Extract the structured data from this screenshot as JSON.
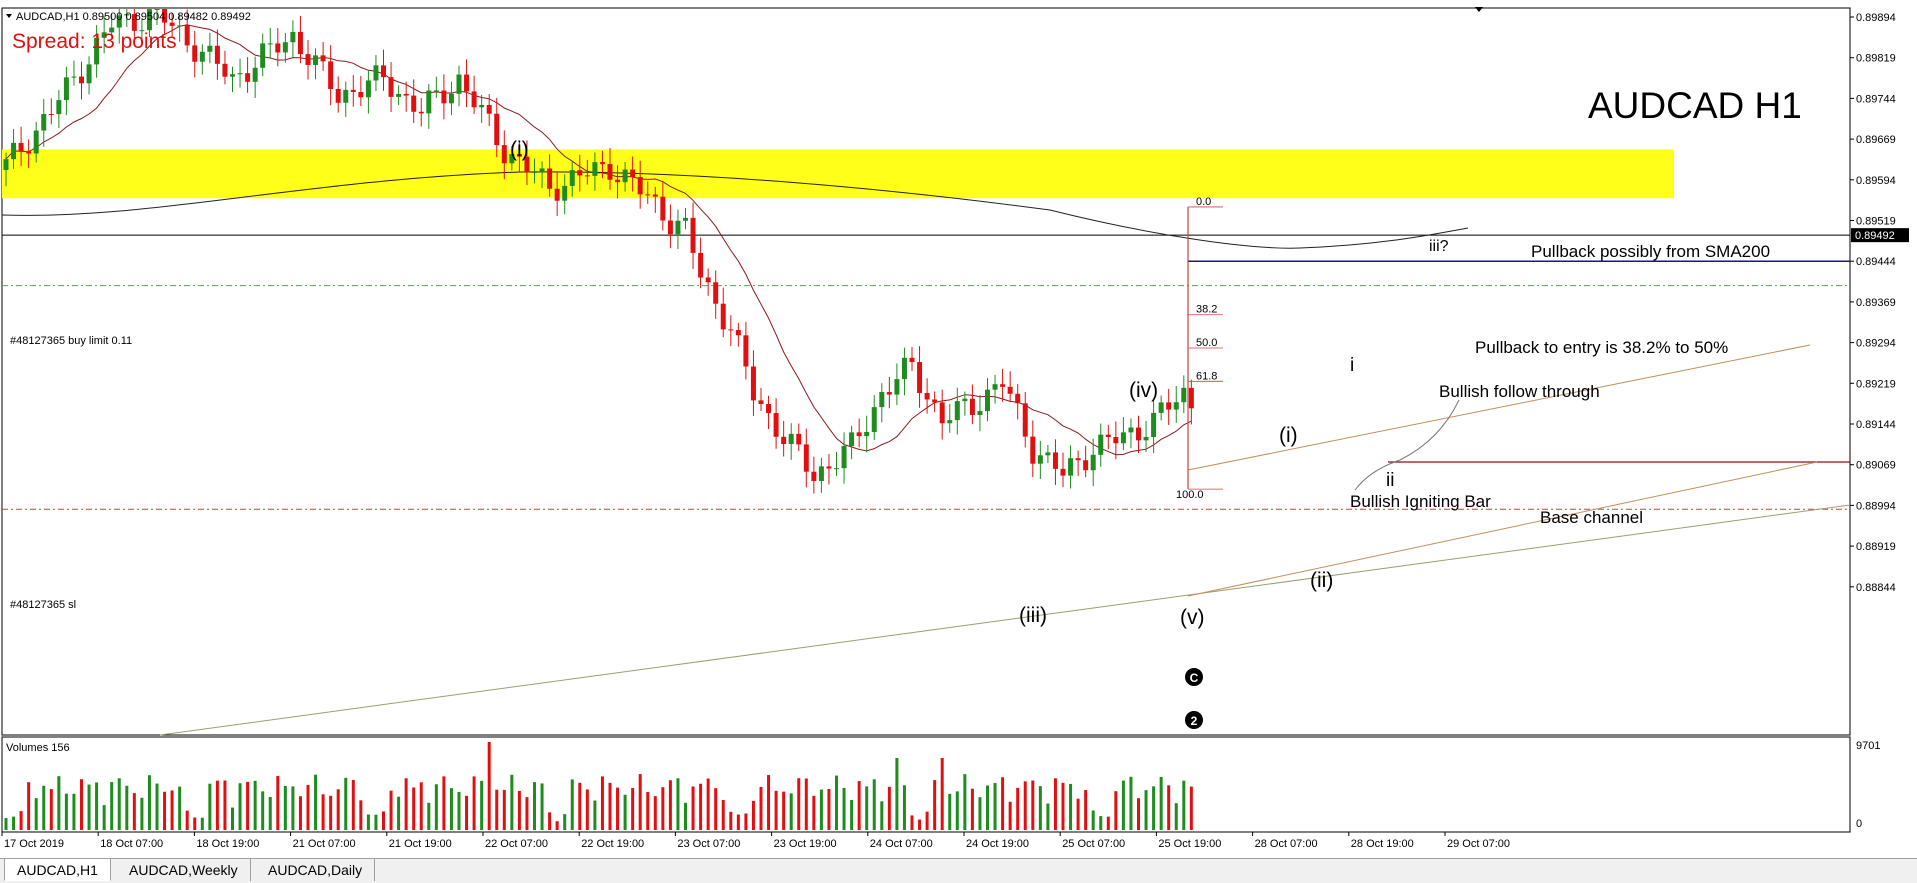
{
  "header": {
    "symbol_info": "AUDCAD,H1  0.89500 0.89504 0.89482 0.89492",
    "spread": "Spread: 13 points",
    "big_title": "AUDCAD H1"
  },
  "colors": {
    "bull": "#1e8c1e",
    "bear": "#e01010",
    "zone": "#ffff1a",
    "sma_fast": "#8b1a1a",
    "sma200": "#222222",
    "buy_limit_line": "#5aa05a",
    "sl_line": "#c04040",
    "fib_line": "#d04040",
    "entry_line": "#1a1a6e",
    "stop_line": "#8b1010",
    "channel": "#c0905a",
    "base_channel": "#9aa070"
  },
  "chart_data": {
    "type": "candlestick",
    "symbol": "AUDCAD",
    "timeframe": "H1",
    "y_ticks": [
      "0.89894",
      "0.89819",
      "0.89744",
      "0.89669",
      "0.89594",
      "0.89519",
      "0.89444",
      "0.89369",
      "0.89294",
      "0.89219",
      "0.89144",
      "0.89069",
      "0.88994",
      "0.88919",
      "0.88844"
    ],
    "ylim": [
      0.888,
      0.899
    ],
    "current_price": "0.89492",
    "x_ticks": [
      "17 Oct 2019",
      "18 Oct 07:00",
      "18 Oct 19:00",
      "21 Oct 07:00",
      "21 Oct 19:00",
      "22 Oct 07:00",
      "22 Oct 19:00",
      "23 Oct 07:00",
      "23 Oct 19:00",
      "24 Oct 07:00",
      "24 Oct 19:00",
      "25 Oct 07:00",
      "25 Oct 19:00",
      "28 Oct 07:00",
      "28 Oct 19:00",
      "29 Oct 07:00"
    ],
    "price_path": [
      [
        0,
        0.8962
      ],
      [
        6,
        0.8972
      ],
      [
        14,
        0.8988
      ],
      [
        20,
        0.899
      ],
      [
        25,
        0.8984
      ],
      [
        30,
        0.8978
      ],
      [
        38,
        0.8986
      ],
      [
        44,
        0.8975
      ],
      [
        50,
        0.8978
      ],
      [
        55,
        0.8972
      ],
      [
        60,
        0.8978
      ],
      [
        66,
        0.8965
      ],
      [
        72,
        0.8958
      ],
      [
        80,
        0.8962
      ],
      [
        86,
        0.8955
      ],
      [
        88,
        0.8952
      ],
      [
        90,
        0.895
      ],
      [
        92,
        0.8942
      ],
      [
        96,
        0.8932
      ],
      [
        99,
        0.892
      ],
      [
        103,
        0.8912
      ],
      [
        107,
        0.8905
      ],
      [
        112,
        0.891
      ],
      [
        116,
        0.892
      ],
      [
        120,
        0.8925
      ],
      [
        124,
        0.8915
      ],
      [
        128,
        0.8918
      ],
      [
        132,
        0.8922
      ],
      [
        136,
        0.891
      ],
      [
        140,
        0.8905
      ],
      [
        144,
        0.891
      ],
      [
        148,
        0.8912
      ],
      [
        152,
        0.8915
      ],
      [
        156,
        0.892
      ],
      [
        160,
        0.8913
      ],
      [
        164,
        0.8912
      ],
      [
        168,
        0.8915
      ],
      [
        171,
        0.8933
      ],
      [
        174,
        0.8926
      ],
      [
        178,
        0.8926
      ],
      [
        180,
        0.8925
      ],
      [
        182,
        0.893
      ],
      [
        186,
        0.8937
      ],
      [
        190,
        0.8944
      ],
      [
        193,
        0.895
      ],
      [
        195,
        0.8949
      ]
    ],
    "volumes": {
      "label": "Volumes 156",
      "max_label": "9701",
      "zero_label": "0"
    },
    "horizontal_lines": [
      {
        "name": "buy-limit",
        "label": "#48127365 buy limit 0.11",
        "price": 0.89399
      },
      {
        "name": "stop-loss",
        "label": "#48127365 sl",
        "price": 0.88987
      },
      {
        "name": "entry",
        "price": 0.89444
      },
      {
        "name": "current",
        "price": 0.89492
      }
    ],
    "fibonacci": {
      "levels": [
        "0.0",
        "38.2",
        "50.0",
        "61.8",
        "100.0"
      ],
      "high": 0.89544,
      "low": 0.89024
    },
    "resistance_zone": [
      0.8956,
      0.8965
    ],
    "wave_labels": [
      "(i)",
      "(iii)",
      "(iv)",
      "(v)",
      "(i)",
      "(ii)",
      "i",
      "ii",
      "iii?"
    ],
    "annotations": [
      "Pullback possibly from SMA200",
      "Pullback to entry is 38.2% to 50%",
      "Bullish follow through",
      "Bullish Igniting Bar",
      "Base channel"
    ],
    "markers": [
      "C",
      "2"
    ]
  },
  "tabs": [
    {
      "label": "AUDCAD,H1",
      "active": true
    },
    {
      "label": "AUDCAD,Weekly",
      "active": false
    },
    {
      "label": "AUDCAD,Daily",
      "active": false
    }
  ]
}
